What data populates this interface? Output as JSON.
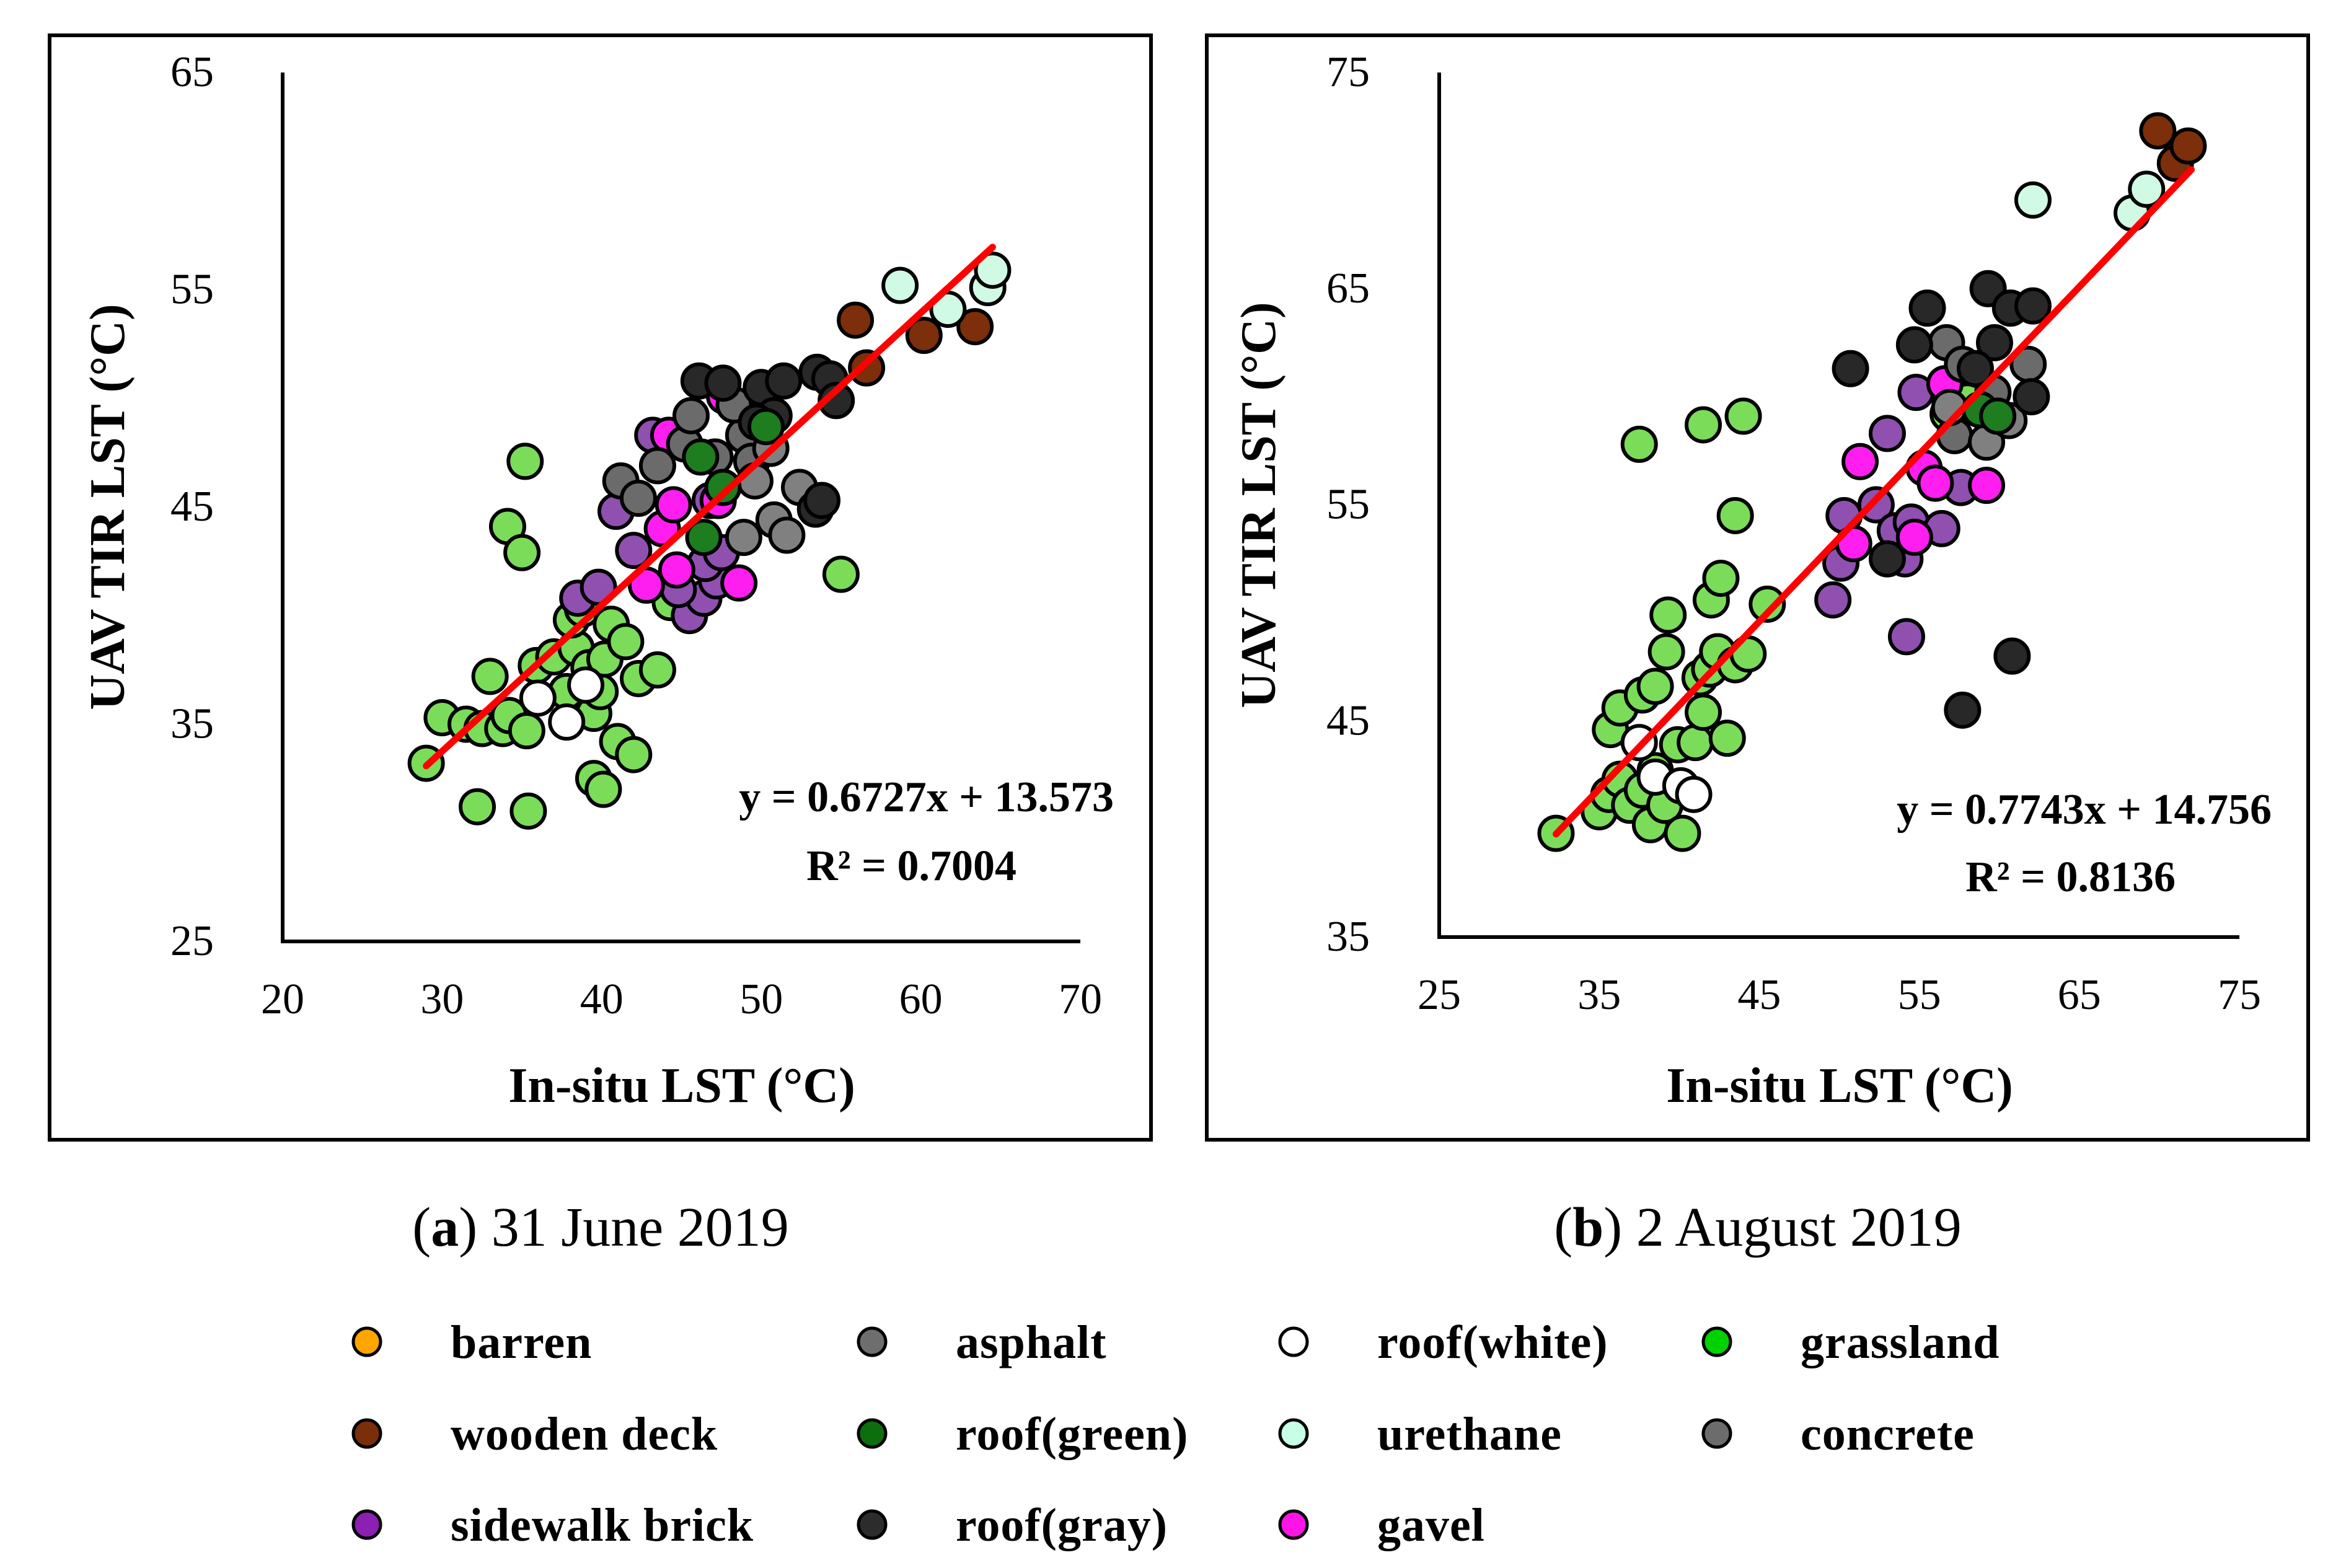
{
  "chart_data": [
    {
      "type": "scatter",
      "caption_letter": "a",
      "caption_text": ") 31 June 2019",
      "caption_open": "(",
      "xlabel": "In-situ LST (°C)",
      "ylabel": "UAV TIR LST (°C)",
      "xlim": [
        20,
        70
      ],
      "ylim": [
        25,
        65
      ],
      "xticks": [
        20,
        30,
        40,
        50,
        60,
        70
      ],
      "yticks": [
        25,
        35,
        45,
        55,
        65
      ],
      "grid": false,
      "equation": "y = 0.6727x + 13.573",
      "r2": "R² = 0.7004",
      "trendline": {
        "slope": 0.6727,
        "intercept": 13.573,
        "x_range": [
          29,
          64.5
        ],
        "color": "#ff0000"
      },
      "points": [
        {
          "c": "grassland",
          "x": 29,
          "y": 33.2
        },
        {
          "c": "grassland",
          "x": 30,
          "y": 35.3
        },
        {
          "c": "grassland",
          "x": 31.5,
          "y": 35
        },
        {
          "c": "grassland",
          "x": 32.5,
          "y": 34.8
        },
        {
          "c": "grassland",
          "x": 32.2,
          "y": 31.2
        },
        {
          "c": "grassland",
          "x": 33,
          "y": 37.2
        },
        {
          "c": "grassland",
          "x": 33.8,
          "y": 34.8
        },
        {
          "c": "grassland",
          "x": 34.2,
          "y": 35.4
        },
        {
          "c": "grassland",
          "x": 35.3,
          "y": 34.7
        },
        {
          "c": "grassland",
          "x": 35.4,
          "y": 31
        },
        {
          "c": "grassland",
          "x": 34.1,
          "y": 44.1
        },
        {
          "c": "grassland",
          "x": 35,
          "y": 42.9
        },
        {
          "c": "grassland",
          "x": 35.2,
          "y": 47.1
        },
        {
          "c": "grassland",
          "x": 35.9,
          "y": 37.7
        },
        {
          "c": "grassland",
          "x": 37,
          "y": 38.1
        },
        {
          "c": "grassland",
          "x": 37.8,
          "y": 36.5
        },
        {
          "c": "grassland",
          "x": 38.4,
          "y": 38.5
        },
        {
          "c": "grassland",
          "x": 38.1,
          "y": 39.8
        },
        {
          "c": "grassland",
          "x": 38.8,
          "y": 40.3
        },
        {
          "c": "grassland",
          "x": 39.2,
          "y": 37.6
        },
        {
          "c": "grassland",
          "x": 39.5,
          "y": 35.5
        },
        {
          "c": "grassland",
          "x": 39.9,
          "y": 36.5
        },
        {
          "c": "grassland",
          "x": 40.2,
          "y": 38
        },
        {
          "c": "grassland",
          "x": 40.6,
          "y": 39.6
        },
        {
          "c": "grassland",
          "x": 39.5,
          "y": 32.5
        },
        {
          "c": "grassland",
          "x": 40.1,
          "y": 32
        },
        {
          "c": "grassland",
          "x": 41,
          "y": 34.2
        },
        {
          "c": "grassland",
          "x": 42,
          "y": 33.6
        },
        {
          "c": "grassland",
          "x": 42.3,
          "y": 37.1
        },
        {
          "c": "grassland",
          "x": 43.5,
          "y": 37.5
        },
        {
          "c": "grassland",
          "x": 41.5,
          "y": 38.8
        },
        {
          "c": "grassland",
          "x": 44.3,
          "y": 40.6
        },
        {
          "c": "grassland",
          "x": 55,
          "y": 41.9
        },
        {
          "c": "roof-white",
          "x": 36,
          "y": 36.2
        },
        {
          "c": "roof-white",
          "x": 37.8,
          "y": 35.1
        },
        {
          "c": "roof-white",
          "x": 39,
          "y": 36.8
        },
        {
          "c": "sidewalk-brick",
          "x": 38.5,
          "y": 40.8
        },
        {
          "c": "sidewalk-brick",
          "x": 39.8,
          "y": 41.3
        },
        {
          "c": "sidewalk-brick",
          "x": 40.9,
          "y": 44.8
        },
        {
          "c": "sidewalk-brick",
          "x": 42,
          "y": 43
        },
        {
          "c": "sidewalk-brick",
          "x": 43.2,
          "y": 48.3
        },
        {
          "c": "sidewalk-brick",
          "x": 45.5,
          "y": 40
        },
        {
          "c": "sidewalk-brick",
          "x": 46.4,
          "y": 40.8
        },
        {
          "c": "sidewalk-brick",
          "x": 47.2,
          "y": 41.6
        },
        {
          "c": "sidewalk-brick",
          "x": 46.5,
          "y": 42.4
        },
        {
          "c": "sidewalk-brick",
          "x": 47.5,
          "y": 42.9
        },
        {
          "c": "sidewalk-brick",
          "x": 44.8,
          "y": 41.2
        },
        {
          "c": "sidewalk-brick",
          "x": 46.8,
          "y": 45.3
        },
        {
          "c": "gavel",
          "x": 42.8,
          "y": 41.4
        },
        {
          "c": "gavel",
          "x": 43.8,
          "y": 44
        },
        {
          "c": "gavel",
          "x": 44.5,
          "y": 45.1
        },
        {
          "c": "gavel",
          "x": 44.2,
          "y": 48.3
        },
        {
          "c": "gavel",
          "x": 44.7,
          "y": 42.1
        },
        {
          "c": "gavel",
          "x": 47.3,
          "y": 45.3
        },
        {
          "c": "gavel",
          "x": 48.6,
          "y": 41.5
        },
        {
          "c": "gavel",
          "x": 47.7,
          "y": 50.1
        },
        {
          "c": "asphalt",
          "x": 41.2,
          "y": 46.2
        },
        {
          "c": "asphalt",
          "x": 42.3,
          "y": 45.4
        },
        {
          "c": "asphalt",
          "x": 43.5,
          "y": 46.9
        },
        {
          "c": "asphalt",
          "x": 45.2,
          "y": 47.9
        },
        {
          "c": "asphalt",
          "x": 45.6,
          "y": 49.2
        },
        {
          "c": "asphalt",
          "x": 47.1,
          "y": 47.3
        },
        {
          "c": "asphalt",
          "x": 48.9,
          "y": 48.3
        },
        {
          "c": "asphalt",
          "x": 49.4,
          "y": 47.1
        },
        {
          "c": "asphalt",
          "x": 48.3,
          "y": 49.7
        },
        {
          "c": "concrete",
          "x": 48.9,
          "y": 43.6
        },
        {
          "c": "concrete",
          "x": 50.8,
          "y": 44.4
        },
        {
          "c": "concrete",
          "x": 51.6,
          "y": 43.7
        },
        {
          "c": "concrete",
          "x": 52.4,
          "y": 45.9
        },
        {
          "c": "concrete",
          "x": 50.6,
          "y": 47.7
        },
        {
          "c": "concrete",
          "x": 49.6,
          "y": 46.2
        },
        {
          "c": "roof-gray",
          "x": 46.1,
          "y": 50.8
        },
        {
          "c": "roof-gray",
          "x": 47.6,
          "y": 50.7
        },
        {
          "c": "roof-gray",
          "x": 50,
          "y": 50.5
        },
        {
          "c": "roof-gray",
          "x": 51.4,
          "y": 50.8
        },
        {
          "c": "roof-gray",
          "x": 53.5,
          "y": 51.2
        },
        {
          "c": "roof-gray",
          "x": 54.3,
          "y": 50.9
        },
        {
          "c": "roof-gray",
          "x": 50.8,
          "y": 49.2
        },
        {
          "c": "roof-gray",
          "x": 53.4,
          "y": 44.9
        },
        {
          "c": "roof-gray",
          "x": 53.8,
          "y": 45.3
        },
        {
          "c": "roof-gray",
          "x": 54.7,
          "y": 49.9
        },
        {
          "c": "roof-gray",
          "x": 49.7,
          "y": 48.9
        },
        {
          "c": "roof-green",
          "x": 46.2,
          "y": 47.3
        },
        {
          "c": "roof-green",
          "x": 47.6,
          "y": 45.9
        },
        {
          "c": "roof-green",
          "x": 46.4,
          "y": 43.6
        },
        {
          "c": "roof-green",
          "x": 50.3,
          "y": 48.7
        },
        {
          "c": "wooden-deck",
          "x": 55.9,
          "y": 53.6
        },
        {
          "c": "wooden-deck",
          "x": 56.6,
          "y": 51.4
        },
        {
          "c": "wooden-deck",
          "x": 60.2,
          "y": 52.9
        },
        {
          "c": "wooden-deck",
          "x": 63.4,
          "y": 53.3
        },
        {
          "c": "urethane",
          "x": 58.7,
          "y": 55.2
        },
        {
          "c": "urethane",
          "x": 61.7,
          "y": 54.1
        },
        {
          "c": "urethane",
          "x": 64.2,
          "y": 55.1
        },
        {
          "c": "urethane",
          "x": 64.5,
          "y": 55.9
        }
      ]
    },
    {
      "type": "scatter",
      "caption_letter": "b",
      "caption_text": ") 2 August 2019",
      "caption_open": "(",
      "xlabel": "In-situ LST (°C)",
      "ylabel": "UAV TIR LST (°C)",
      "xlim": [
        25,
        75
      ],
      "ylim": [
        35,
        75
      ],
      "xticks": [
        25,
        35,
        45,
        55,
        65,
        75
      ],
      "yticks": [
        35,
        45,
        55,
        65,
        75
      ],
      "grid": false,
      "equation": "y = 0.7743x + 14.756",
      "r2": "R² = 0.8136",
      "trendline": {
        "slope": 0.7743,
        "intercept": 14.756,
        "x_range": [
          32.3,
          72
        ],
        "color": "#ff0000"
      },
      "points": [
        {
          "c": "grassland",
          "x": 32.3,
          "y": 39.8
        },
        {
          "c": "grassland",
          "x": 35,
          "y": 40.8
        },
        {
          "c": "grassland",
          "x": 35.6,
          "y": 41.6
        },
        {
          "c": "grassland",
          "x": 36.3,
          "y": 42.3
        },
        {
          "c": "grassland",
          "x": 36.9,
          "y": 41.1
        },
        {
          "c": "grassland",
          "x": 37.7,
          "y": 41.8
        },
        {
          "c": "grassland",
          "x": 38.2,
          "y": 40.2
        },
        {
          "c": "grassland",
          "x": 38.5,
          "y": 42.7
        },
        {
          "c": "grassland",
          "x": 39.1,
          "y": 41.1
        },
        {
          "c": "grassland",
          "x": 40.2,
          "y": 39.8
        },
        {
          "c": "grassland",
          "x": 35.7,
          "y": 44.6
        },
        {
          "c": "grassland",
          "x": 36.3,
          "y": 45.6
        },
        {
          "c": "grassland",
          "x": 37.7,
          "y": 46.2
        },
        {
          "c": "grassland",
          "x": 38.5,
          "y": 46.6
        },
        {
          "c": "grassland",
          "x": 39.2,
          "y": 48.2
        },
        {
          "c": "grassland",
          "x": 39.3,
          "y": 49.9
        },
        {
          "c": "grassland",
          "x": 39.9,
          "y": 43.9
        },
        {
          "c": "grassland",
          "x": 41,
          "y": 44
        },
        {
          "c": "grassland",
          "x": 41.5,
          "y": 45.4
        },
        {
          "c": "grassland",
          "x": 41.3,
          "y": 47
        },
        {
          "c": "grassland",
          "x": 41.9,
          "y": 47.4
        },
        {
          "c": "grassland",
          "x": 42.4,
          "y": 48.2
        },
        {
          "c": "grassland",
          "x": 42,
          "y": 50.6
        },
        {
          "c": "grassland",
          "x": 42.6,
          "y": 51.6
        },
        {
          "c": "grassland",
          "x": 43,
          "y": 44.2
        },
        {
          "c": "grassland",
          "x": 43.5,
          "y": 47.6
        },
        {
          "c": "grassland",
          "x": 44.3,
          "y": 48.1
        },
        {
          "c": "grassland",
          "x": 45.5,
          "y": 50.4
        },
        {
          "c": "grassland",
          "x": 43.5,
          "y": 54.5
        },
        {
          "c": "grassland",
          "x": 44,
          "y": 59.1
        },
        {
          "c": "grassland",
          "x": 41.5,
          "y": 58.7
        },
        {
          "c": "grassland",
          "x": 37.5,
          "y": 57.8
        },
        {
          "c": "grassland",
          "x": 56.8,
          "y": 59.2
        },
        {
          "c": "grassland",
          "x": 58,
          "y": 59.8
        },
        {
          "c": "roof-white",
          "x": 38.5,
          "y": 42.4
        },
        {
          "c": "roof-white",
          "x": 40.1,
          "y": 42
        },
        {
          "c": "roof-white",
          "x": 40.9,
          "y": 41.6
        },
        {
          "c": "roof-white",
          "x": 37.5,
          "y": 44
        },
        {
          "c": "sidewalk-brick",
          "x": 49.6,
          "y": 50.6
        },
        {
          "c": "sidewalk-brick",
          "x": 50.1,
          "y": 52.3
        },
        {
          "c": "sidewalk-brick",
          "x": 50.3,
          "y": 54.5
        },
        {
          "c": "sidewalk-brick",
          "x": 52.3,
          "y": 55
        },
        {
          "c": "sidewalk-brick",
          "x": 53.5,
          "y": 53.8
        },
        {
          "c": "sidewalk-brick",
          "x": 54.1,
          "y": 52.5
        },
        {
          "c": "sidewalk-brick",
          "x": 54.5,
          "y": 54.2
        },
        {
          "c": "sidewalk-brick",
          "x": 53,
          "y": 58.3
        },
        {
          "c": "sidewalk-brick",
          "x": 54.8,
          "y": 60.2
        },
        {
          "c": "sidewalk-brick",
          "x": 56.4,
          "y": 53.9
        },
        {
          "c": "sidewalk-brick",
          "x": 57.6,
          "y": 55.8
        },
        {
          "c": "sidewalk-brick",
          "x": 54.2,
          "y": 48.9
        },
        {
          "c": "gavel",
          "x": 50.9,
          "y": 53.2
        },
        {
          "c": "gavel",
          "x": 51.3,
          "y": 57
        },
        {
          "c": "gavel",
          "x": 54.7,
          "y": 53.5
        },
        {
          "c": "gavel",
          "x": 55.3,
          "y": 56.7
        },
        {
          "c": "gavel",
          "x": 56,
          "y": 56
        },
        {
          "c": "gavel",
          "x": 56.6,
          "y": 60.6
        },
        {
          "c": "gavel",
          "x": 59.2,
          "y": 55.9
        },
        {
          "c": "asphalt",
          "x": 56.7,
          "y": 62.5
        },
        {
          "c": "asphalt",
          "x": 57.7,
          "y": 61.5
        },
        {
          "c": "asphalt",
          "x": 59.6,
          "y": 60.2
        },
        {
          "c": "asphalt",
          "x": 61.8,
          "y": 61.5
        },
        {
          "c": "asphalt",
          "x": 57.2,
          "y": 58.2
        },
        {
          "c": "concrete",
          "x": 56.9,
          "y": 59.5
        },
        {
          "c": "concrete",
          "x": 59.2,
          "y": 57.9
        },
        {
          "c": "concrete",
          "x": 60.6,
          "y": 58.9
        },
        {
          "c": "roof-gray",
          "x": 50.7,
          "y": 61.3
        },
        {
          "c": "roof-gray",
          "x": 53,
          "y": 52.5
        },
        {
          "c": "roof-gray",
          "x": 54.7,
          "y": 62.4
        },
        {
          "c": "roof-gray",
          "x": 55.5,
          "y": 64.1
        },
        {
          "c": "roof-gray",
          "x": 57.7,
          "y": 45.5
        },
        {
          "c": "roof-gray",
          "x": 60.8,
          "y": 48
        },
        {
          "c": "roof-gray",
          "x": 59.3,
          "y": 65
        },
        {
          "c": "roof-gray",
          "x": 60.7,
          "y": 64.1
        },
        {
          "c": "roof-gray",
          "x": 62.1,
          "y": 64.2
        },
        {
          "c": "roof-gray",
          "x": 62,
          "y": 60
        },
        {
          "c": "roof-gray",
          "x": 59.7,
          "y": 62.5
        },
        {
          "c": "roof-gray",
          "x": 58.5,
          "y": 61.3
        },
        {
          "c": "roof-green",
          "x": 58.8,
          "y": 59.4
        },
        {
          "c": "roof-green",
          "x": 59.9,
          "y": 59.1
        },
        {
          "c": "wooden-deck",
          "x": 69.9,
          "y": 72.3
        },
        {
          "c": "wooden-deck",
          "x": 71,
          "y": 70.8
        },
        {
          "c": "wooden-deck",
          "x": 71.8,
          "y": 71.6
        },
        {
          "c": "urethane",
          "x": 62.1,
          "y": 69.1
        },
        {
          "c": "urethane",
          "x": 68.3,
          "y": 68.5
        },
        {
          "c": "urethane",
          "x": 69.2,
          "y": 69.6
        }
      ]
    }
  ],
  "colors": {
    "barren": "#ffa500",
    "wooden-deck": "#7a2e0a",
    "sidewalk-brick": "#8c1fb4",
    "asphalt": "#6e6e6e",
    "roof-green": "#0c6e0c",
    "roof-gray": "#2c2c2c",
    "roof-white": "#ffffff",
    "urethane": "#c6ffe6",
    "gavel": "#ff14e6",
    "grassland": "#00d200",
    "concrete": "#6c6c6c"
  },
  "point_colors": {
    "barren": "#ffa520",
    "wooden-deck": "#7d2e0a",
    "sidewalk-brick": "#9050b0",
    "asphalt": "#6b6b6b",
    "roof-green": "#1e7d1e",
    "roof-gray": "#282828",
    "roof-white": "#ffffff",
    "urethane": "#d0fae4",
    "gavel": "#ff1ef0",
    "grassland": "#7bdc5a",
    "concrete": "#808080"
  },
  "legend": [
    {
      "key": "barren",
      "label": "barren"
    },
    {
      "key": "asphalt",
      "label": "asphalt"
    },
    {
      "key": "roof-white",
      "label": "roof(white)"
    },
    {
      "key": "grassland",
      "label": "grassland"
    },
    {
      "key": "wooden-deck",
      "label": "wooden deck"
    },
    {
      "key": "roof-green",
      "label": "roof(green)"
    },
    {
      "key": "urethane",
      "label": "urethane"
    },
    {
      "key": "concrete",
      "label": "concrete"
    },
    {
      "key": "sidewalk-brick",
      "label": "sidewalk brick"
    },
    {
      "key": "roof-gray",
      "label": "roof(gray)"
    },
    {
      "key": "gavel",
      "label": "gavel"
    }
  ]
}
